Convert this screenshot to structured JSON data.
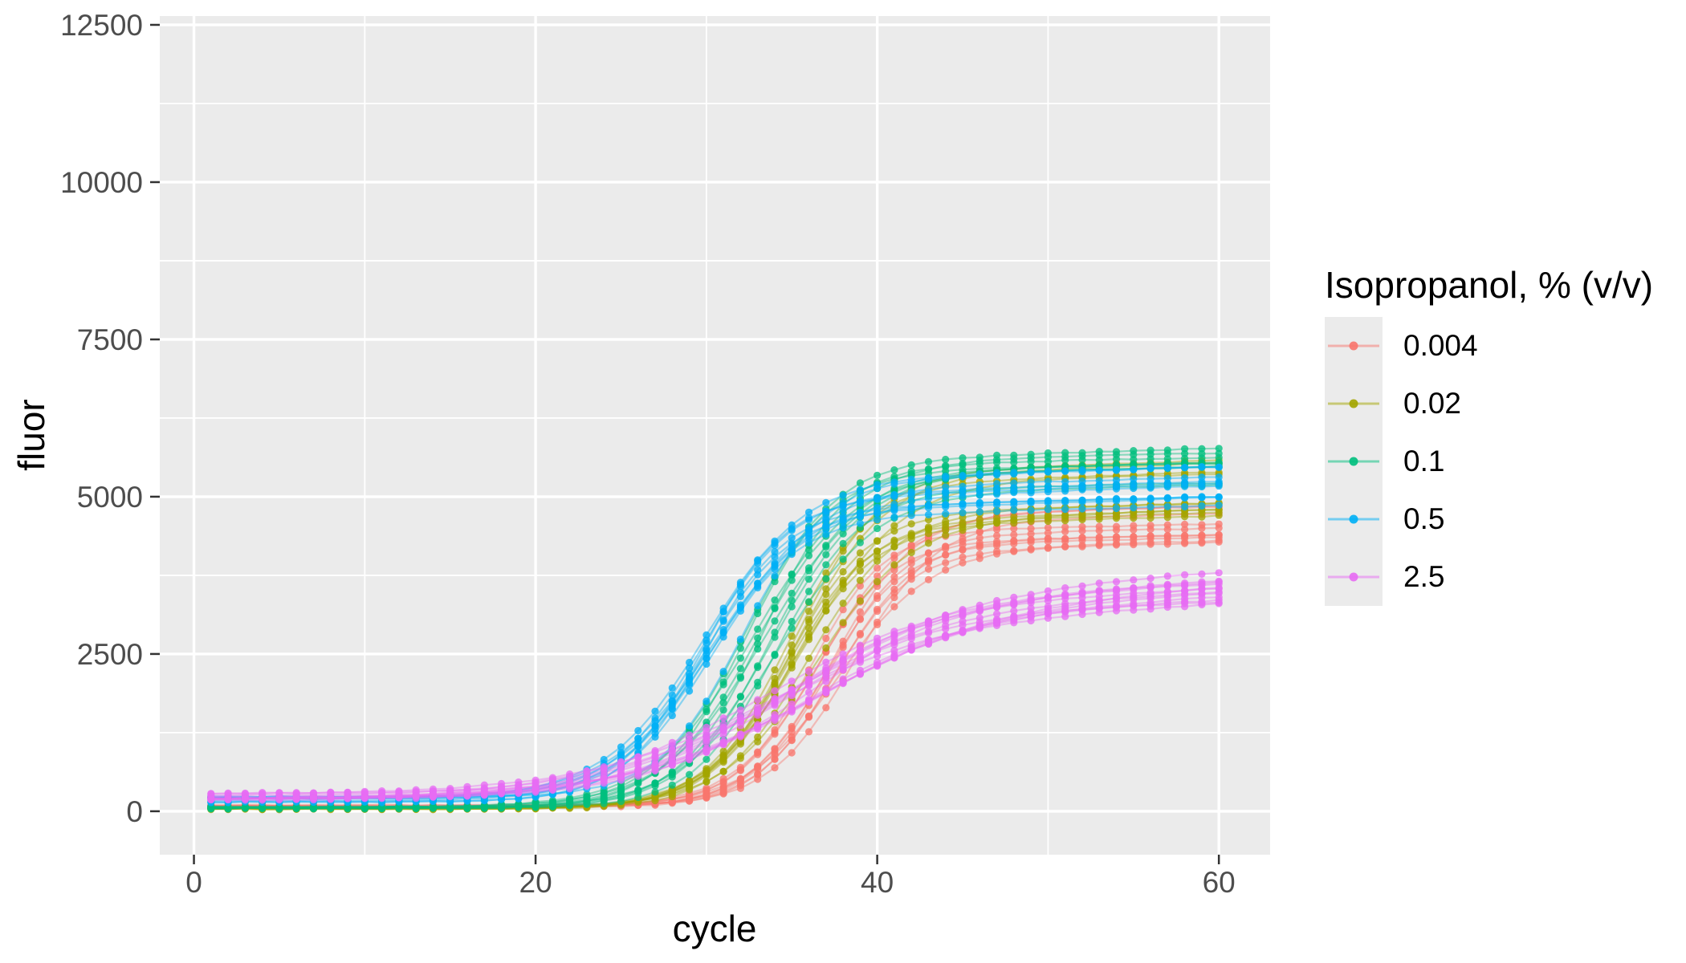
{
  "figure": {
    "background": "#FFFFFF",
    "panel_bg": "#EBEBEB",
    "grid_color": "#FFFFFF",
    "tick_label_color": "#4D4D4D",
    "tick_mark_color": "#333333",
    "axis_title_color": "#000000"
  },
  "axes": {
    "x": {
      "title": "cycle",
      "tick_labels": [
        "0",
        "20",
        "40",
        "60"
      ],
      "tick_values": [
        0,
        20,
        40,
        60
      ],
      "minor_values": [
        10,
        30,
        50
      ],
      "range": [
        -2,
        63
      ]
    },
    "y": {
      "title": "fluor",
      "tick_labels": [
        "0",
        "2500",
        "5000",
        "7500",
        "10000",
        "12500"
      ],
      "tick_values": [
        0,
        2500,
        5000,
        7500,
        10000,
        12500
      ],
      "minor_values": [
        1250,
        3750,
        6250,
        8750,
        11250
      ],
      "range": [
        -690,
        12640
      ]
    }
  },
  "legend": {
    "title": "Isopropanol, % (v/v)",
    "key_bg": "#EBEBEB",
    "items": [
      {
        "label": "0.004",
        "color": "#F8766D"
      },
      {
        "label": "0.02",
        "color": "#A3A500"
      },
      {
        "label": "0.1",
        "color": "#00BF7D"
      },
      {
        "label": "0.5",
        "color": "#00B0F6"
      },
      {
        "label": "2.5",
        "color": "#E76BF3"
      }
    ]
  },
  "chart_data": {
    "type": "line",
    "title": "",
    "xlabel": "cycle",
    "ylabel": "fluor",
    "xlim": [
      -2,
      63
    ],
    "ylim": [
      -690,
      12640
    ],
    "x_ticks": [
      0,
      20,
      40,
      60
    ],
    "y_ticks": [
      0,
      2500,
      5000,
      7500,
      10000,
      12500
    ],
    "grid": "white major and minor gridlines on grey panel",
    "legend_position": "right",
    "legend_title": "Isopropanol, % (v/v)",
    "marker": "point at every cycle, semi-transparent connecting lines, ~10 replicate wells per group",
    "cycles_sampled": [
      1,
      5,
      10,
      15,
      20,
      25,
      30,
      35,
      40,
      45,
      50,
      55,
      60
    ],
    "series": [
      {
        "name": "0.004",
        "color": "#F8766D",
        "replicates": 10,
        "mean_fluor": [
          80,
          80,
          80,
          80,
          83,
          106,
          278,
          1286,
          3380,
          4306,
          4484,
          4535,
          4566
        ],
        "sigmoid": {
          "base": 80,
          "plateau": 4350,
          "midpoint": 37.3,
          "slope": 2.4,
          "drift": 6,
          "mid_jitter": 1.3,
          "plateau_jitter": 0.07
        }
      },
      {
        "name": "0.02",
        "color": "#A3A500",
        "replicates": 10,
        "mean_fluor": [
          45,
          45,
          45,
          46,
          58,
          131,
          578,
          2261,
          4176,
          4795,
          4930,
          4977,
          5016
        ],
        "sigmoid": {
          "base": 45,
          "plateau": 4800,
          "midpoint": 35.4,
          "slope": 2.6,
          "drift": 7,
          "mid_jitter": 1.1,
          "plateau_jitter": 0.11
        }
      },
      {
        "name": "0.1",
        "color": "#00BF7D",
        "replicates": 10,
        "mean_fluor": [
          55,
          55,
          55,
          61,
          94,
          295,
          1282,
          3535,
          4955,
          5310,
          5396,
          5434,
          5466
        ],
        "sigmoid": {
          "base": 55,
          "plateau": 5250,
          "midpoint": 33.2,
          "slope": 2.7,
          "drift": 6,
          "mid_jitter": 1.0,
          "plateau_jitter": 0.05
        }
      },
      {
        "name": "0.5",
        "color": "#00B0F6",
        "replicates": 10,
        "mean_fluor": [
          190,
          190,
          192,
          204,
          276,
          692,
          2237,
          4184,
          4754,
          4880,
          4972,
          5010,
          5053
        ],
        "sigmoid": {
          "base": 190,
          "plateau": 4800,
          "midpoint": 30.8,
          "slope": 2.7,
          "drift": 7,
          "mid_jitter": 1.2,
          "plateau_jitter": 0.06
        }
      },
      {
        "name": "2.5",
        "color": "#E76BF3",
        "replicates": 12,
        "mean_fluor": [
          235,
          238,
          253,
          291,
          390,
          627,
          1107,
          1817,
          2539,
          3008,
          3262,
          3403,
          3497
        ],
        "sigmoid": {
          "base": 230,
          "plateau": 2950,
          "midpoint": 34.3,
          "slope": 5.0,
          "drift": 13,
          "mid_jitter": 1.6,
          "plateau_jitter": 0.09
        }
      }
    ]
  }
}
